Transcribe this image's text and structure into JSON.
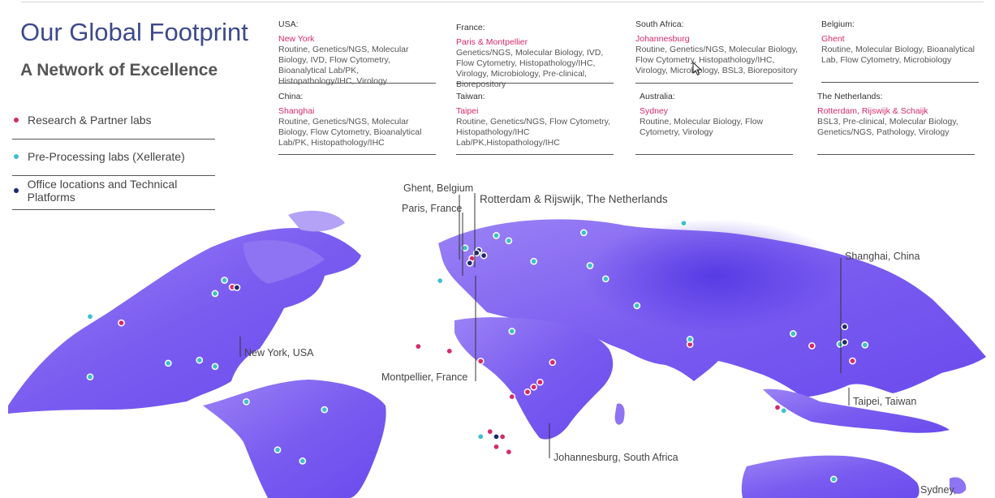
{
  "header": {
    "title": "Our Global Footprint",
    "subtitle": "A Network of Excellence"
  },
  "legend": [
    {
      "label": "Research & Partner labs",
      "color": "#d5296a"
    },
    {
      "label": "Pre-Processing labs (Xellerate)",
      "color": "#3dbfd1"
    },
    {
      "label": "Office locations and Technical Platforms",
      "color": "#1e2a6b"
    }
  ],
  "sites": [
    {
      "country": "USA:",
      "city": "New York",
      "capabilities": "Routine, Genetics/NGS, Molecular Biology, IVD, Flow Cytometry, Bioanalytical Lab/PK, Histopathology/IHC, Virology"
    },
    {
      "country": "France:",
      "city": "Paris & Montpellier",
      "capabilities": "Genetics/NGS, Molecular Biology, IVD, Flow Cytometry, Histopathology/IHC, Virology, Microbiology, Pre-clinical, Biorepository"
    },
    {
      "country": "South Africa:",
      "city": "Johannesburg",
      "capabilities": "Routine, Genetics/NGS, Molecular Biology, Flow Cytometry, Histopathology/IHC, Virology, Microbiology, BSL3, Biorepository"
    },
    {
      "country": "Belgium:",
      "city": "Ghent",
      "capabilities": "Routine, Molecular Biology, Bioanalytical Lab, Flow Cytometry, Microbiology"
    },
    {
      "country": "China:",
      "city": "Shanghai",
      "capabilities": "Routine, Genetics/NGS, Molecular Biology, Flow Cytometry, Bioanalytical Lab/PK, Histopathology/IHC"
    },
    {
      "country": "Taiwan:",
      "city": "Taipei",
      "capabilities": "Routine, Genetics/NGS, Flow Cytometry, Histopathology/IHC Lab/PK,Histopathology/IHC"
    },
    {
      "country": "Australia:",
      "city": "Sydney",
      "capabilities": "Routine, Molecular Biology, Flow Cytometry, Virology"
    },
    {
      "country": "The Netherlands:",
      "city": "Rotterdam, Rijswijk & Schaijk",
      "capabilities": "BSL3, Pre-clinical, Molecular Biology, Genetics/NGS, Pathology, Virology"
    }
  ],
  "map_labels": {
    "ghent": "Ghent, Belgium",
    "rotterdam": "Rotterdam & Rijswijk, The Netherlands",
    "paris": "Paris, France",
    "shanghai": "Shanghai, China",
    "newyork": "New York, USA",
    "montpellier": "Montpellier, France",
    "taipei": "Taipei, Taiwan",
    "johannesburg": "Johannesburg, South Africa",
    "sydney": "Sydney,"
  },
  "colors": {
    "research": "#d5296a",
    "preprocessing": "#3dbfd1",
    "office": "#1e2a6b",
    "land": "#8a6cf2",
    "land_dark": "#5a3ae6",
    "title": "#3d4a8c"
  },
  "markers": [
    {
      "type": "research",
      "lon": -74.5,
      "lat": 41
    },
    {
      "type": "research",
      "lon": -110,
      "lat": 31
    },
    {
      "type": "research",
      "lon": 2.2,
      "lat": 48.8
    },
    {
      "type": "research",
      "lon": -15,
      "lat": 14
    },
    {
      "type": "research",
      "lon": -5,
      "lat": 12
    },
    {
      "type": "research",
      "lon": 5,
      "lat": 8
    },
    {
      "type": "research",
      "lon": 28,
      "lat": 8
    },
    {
      "type": "research",
      "lon": 24,
      "lat": 0
    },
    {
      "type": "research",
      "lon": 22,
      "lat": -2
    },
    {
      "type": "research",
      "lon": 20,
      "lat": -4
    },
    {
      "type": "research",
      "lon": 15,
      "lat": -6
    },
    {
      "type": "research",
      "lon": 8,
      "lat": -20
    },
    {
      "type": "research",
      "lon": 12,
      "lat": -22
    },
    {
      "type": "research",
      "lon": 10,
      "lat": -26
    },
    {
      "type": "research",
      "lon": 14,
      "lat": -28
    },
    {
      "type": "research",
      "lon": 72,
      "lat": 18
    },
    {
      "type": "research",
      "lon": 100,
      "lat": -4
    },
    {
      "type": "research",
      "lon": 111,
      "lat": 22
    },
    {
      "type": "research",
      "lon": 124,
      "lat": 18
    },
    {
      "type": "preprocessing",
      "lon": -150,
      "lat": 32
    },
    {
      "type": "preprocessing",
      "lon": -120,
      "lat": 35
    },
    {
      "type": "preprocessing",
      "lon": -77,
      "lat": 44
    },
    {
      "type": "preprocessing",
      "lon": -80,
      "lat": 39
    },
    {
      "type": "preprocessing",
      "lon": -95,
      "lat": 13
    },
    {
      "type": "preprocessing",
      "lon": -120,
      "lat": 11
    },
    {
      "type": "preprocessing",
      "lon": -85,
      "lat": 13
    },
    {
      "type": "preprocessing",
      "lon": -80,
      "lat": 10
    },
    {
      "type": "preprocessing",
      "lon": -70,
      "lat": -5
    },
    {
      "type": "preprocessing",
      "lon": -60,
      "lat": -25
    },
    {
      "type": "preprocessing",
      "lon": -52,
      "lat": -30
    },
    {
      "type": "preprocessing",
      "lon": -45,
      "lat": -10
    },
    {
      "type": "preprocessing",
      "lon": -8,
      "lat": 40
    },
    {
      "type": "preprocessing",
      "lon": 0,
      "lat": 53
    },
    {
      "type": "preprocessing",
      "lon": 10,
      "lat": 58
    },
    {
      "type": "preprocessing",
      "lon": 14,
      "lat": 56
    },
    {
      "type": "preprocessing",
      "lon": 22,
      "lat": 48
    },
    {
      "type": "preprocessing",
      "lon": 38,
      "lat": 60
    },
    {
      "type": "preprocessing",
      "lon": 40,
      "lat": 47
    },
    {
      "type": "preprocessing",
      "lon": 45,
      "lat": 42
    },
    {
      "type": "preprocessing",
      "lon": 55,
      "lat": 32
    },
    {
      "type": "preprocessing",
      "lon": 15,
      "lat": 20
    },
    {
      "type": "preprocessing",
      "lon": 5,
      "lat": -22
    },
    {
      "type": "preprocessing",
      "lon": 70,
      "lat": 66
    },
    {
      "type": "preprocessing",
      "lon": 72,
      "lat": 20
    },
    {
      "type": "preprocessing",
      "lon": 105,
      "lat": 26
    },
    {
      "type": "preprocessing",
      "lon": 120,
      "lat": 24
    },
    {
      "type": "preprocessing",
      "lon": 128,
      "lat": 25
    },
    {
      "type": "preprocessing",
      "lon": 102,
      "lat": -5
    },
    {
      "type": "preprocessing",
      "lon": 118,
      "lat": -30
    },
    {
      "type": "office",
      "lon": -73,
      "lat": 40.7
    },
    {
      "type": "office",
      "lon": 4.4,
      "lat": 52
    },
    {
      "type": "office",
      "lon": 3.7,
      "lat": 51
    },
    {
      "type": "office",
      "lon": 1.5,
      "lat": 47
    },
    {
      "type": "office",
      "lon": 6,
      "lat": 50
    },
    {
      "type": "office",
      "lon": 10,
      "lat": -22
    },
    {
      "type": "office",
      "lon": 121.5,
      "lat": 31.2
    },
    {
      "type": "office",
      "lon": 121.5,
      "lat": 25
    }
  ]
}
